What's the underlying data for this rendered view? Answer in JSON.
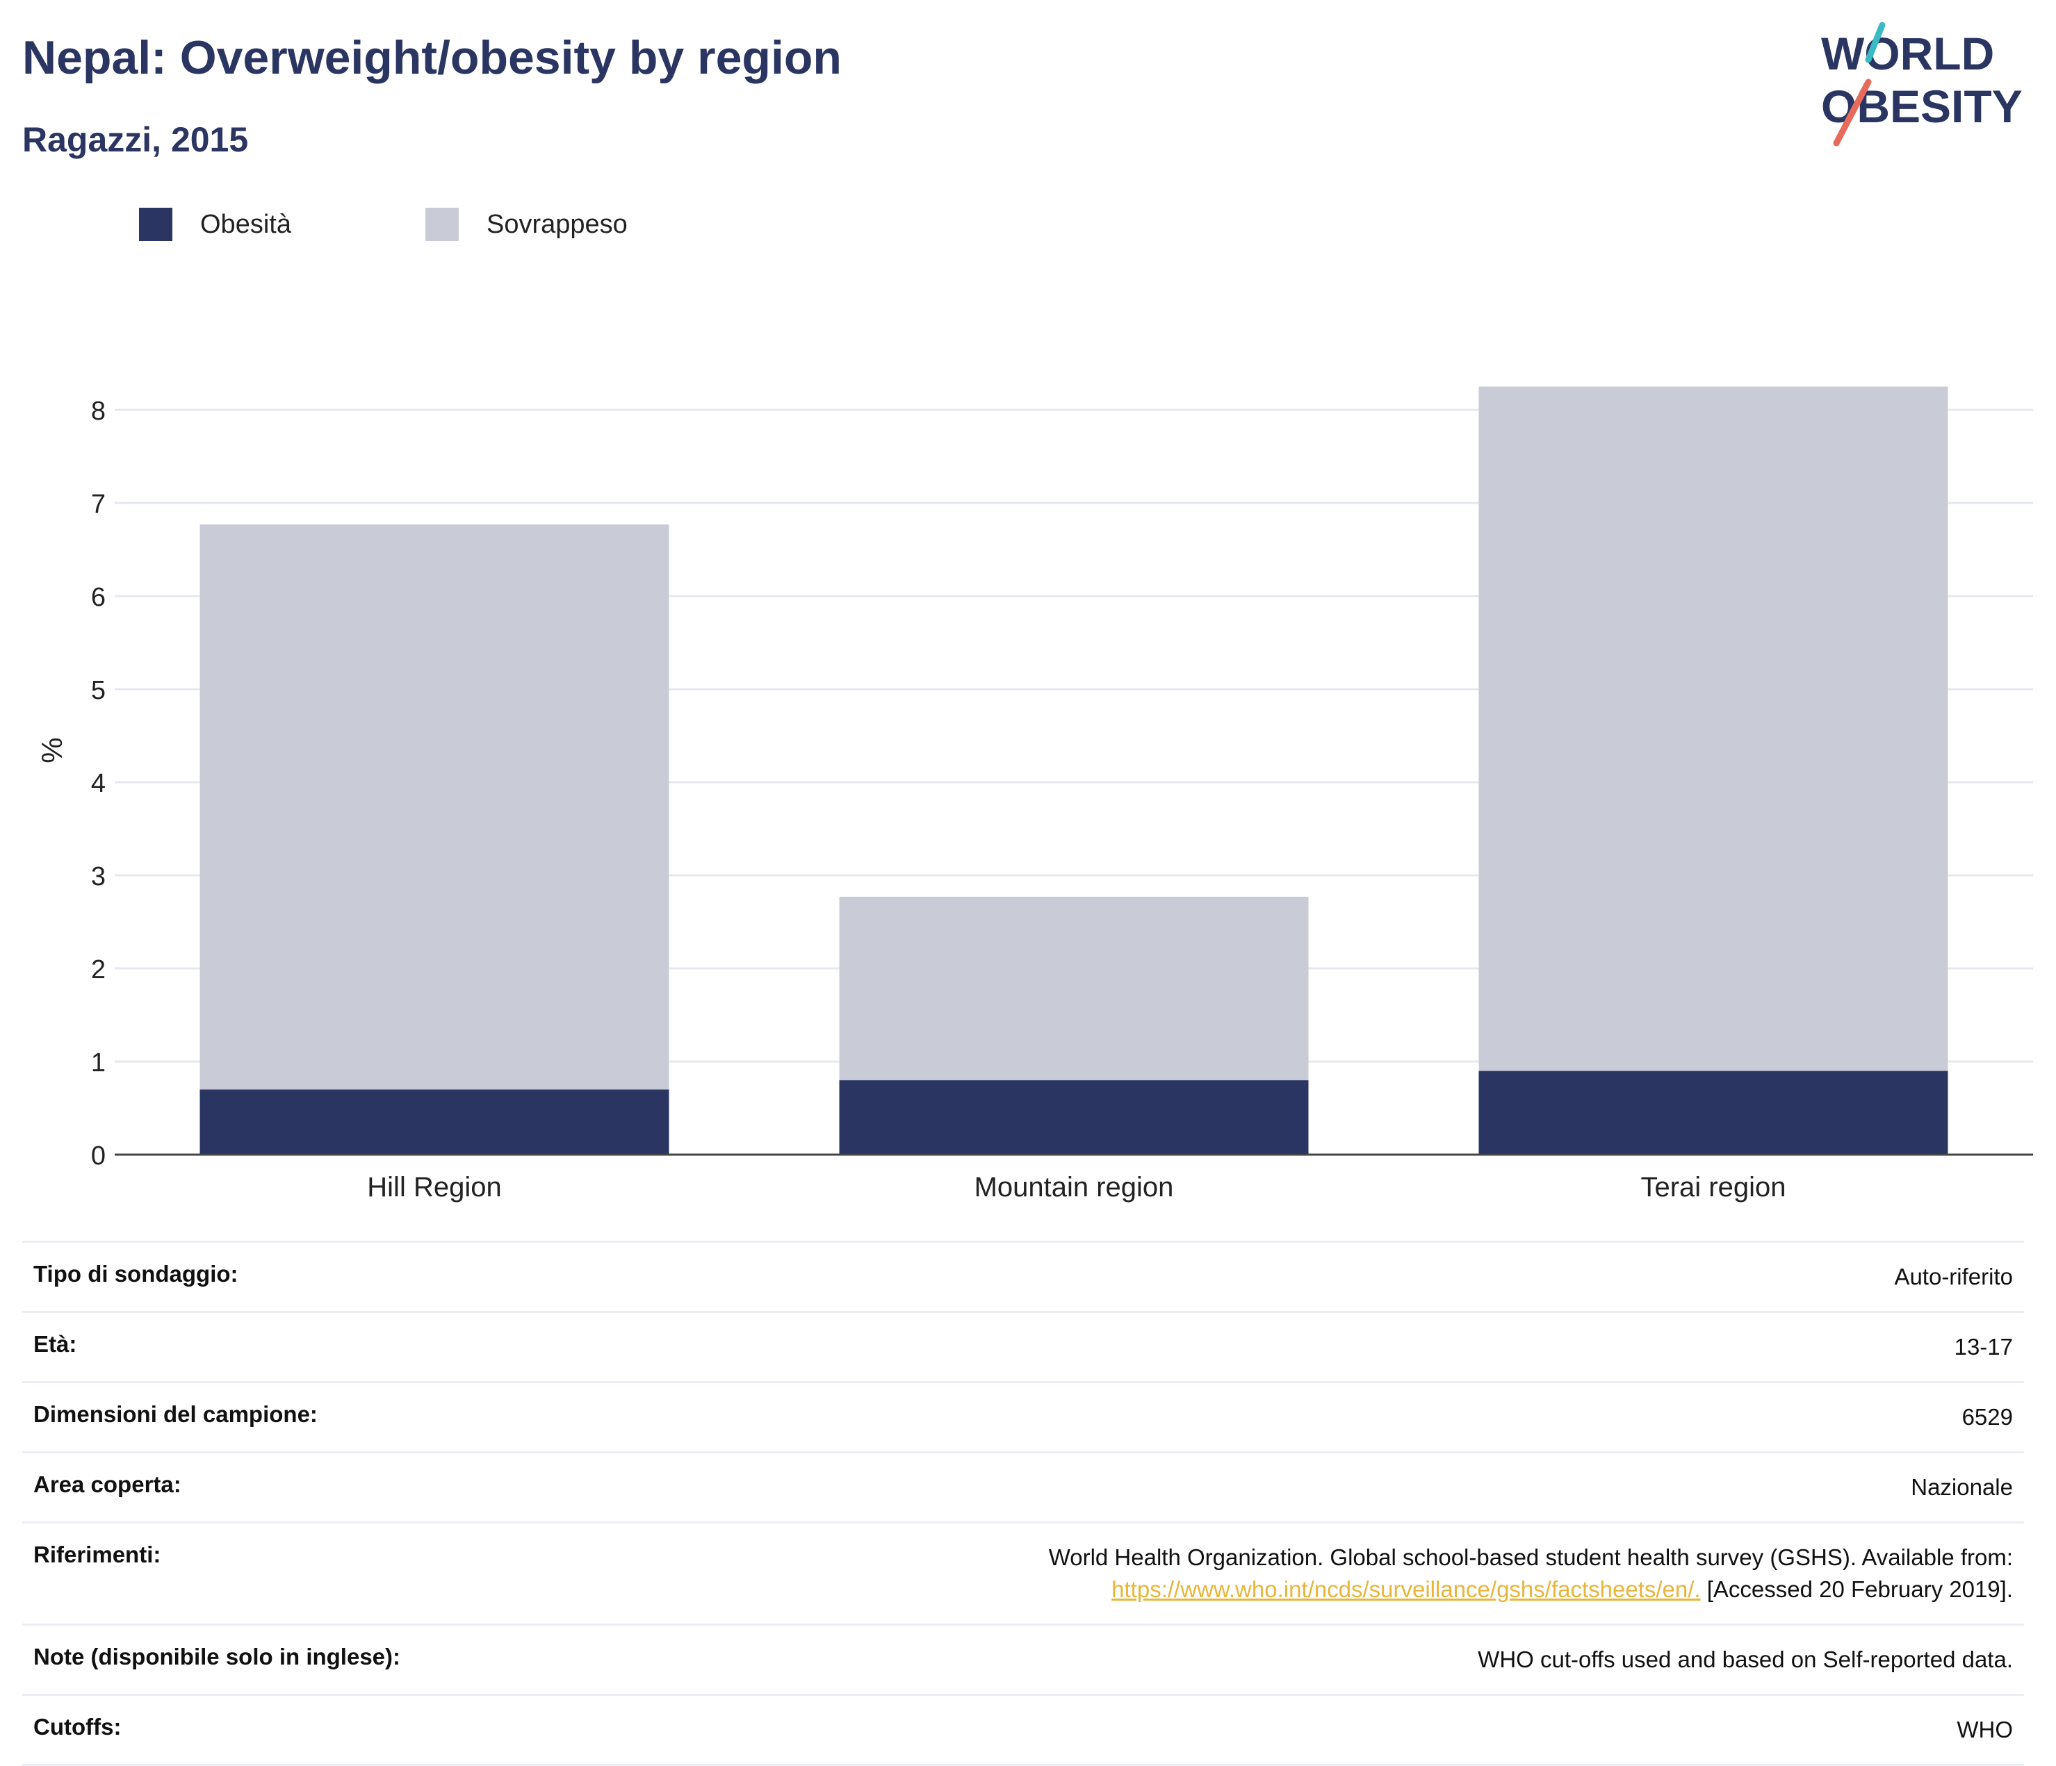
{
  "header": {
    "title": "Nepal: Overweight/obesity by region",
    "subtitle": "Ragazzi, 2015"
  },
  "logo": {
    "line1": "WORLD",
    "line2": "OBESITY",
    "colors": {
      "text": "#2a3562",
      "slash_teal": "#3bb9c4",
      "slash_coral": "#e86a5a"
    }
  },
  "legend": [
    {
      "label": "Obesità",
      "color": "#2a3562"
    },
    {
      "label": "Sovrappeso",
      "color": "#c9ccd7"
    }
  ],
  "chart_data": {
    "type": "bar",
    "stacked": true,
    "categories": [
      "Hill Region",
      "Mountain region",
      "Terai region"
    ],
    "series": [
      {
        "name": "Obesità",
        "color": "#2a3562",
        "values": [
          0.7,
          0.8,
          0.9
        ]
      },
      {
        "name": "Sovrappeso",
        "color": "#c9ccd7",
        "values": [
          6.07,
          1.97,
          7.35
        ]
      }
    ],
    "totals": [
      6.77,
      2.77,
      8.25
    ],
    "ylabel": "%",
    "ylim": [
      0,
      8.6
    ],
    "yticks": [
      0,
      1,
      2,
      3,
      4,
      5,
      6,
      7,
      8
    ],
    "grid": true,
    "legend_position": "top-left"
  },
  "info": [
    {
      "label": "Tipo di sondaggio:",
      "value": "Auto-riferito"
    },
    {
      "label": "Età:",
      "value": "13-17"
    },
    {
      "label": "Dimensioni del campione:",
      "value": "6529"
    },
    {
      "label": "Area coperta:",
      "value": "Nazionale"
    },
    {
      "label": "Riferimenti:",
      "value_line1": "World Health Organization. Global school-based student health survey (GSHS). Available from:",
      "link": "https://www.who.int/ncds/surveillance/gshs/factsheets/en/.",
      "value_after_link": " [Accessed 20 February 2019]."
    },
    {
      "label": "Note (disponibile solo in inglese):",
      "value": "WHO cut-offs used and based on Self-reported data."
    },
    {
      "label": "Cutoffs:",
      "value": "WHO"
    }
  ]
}
